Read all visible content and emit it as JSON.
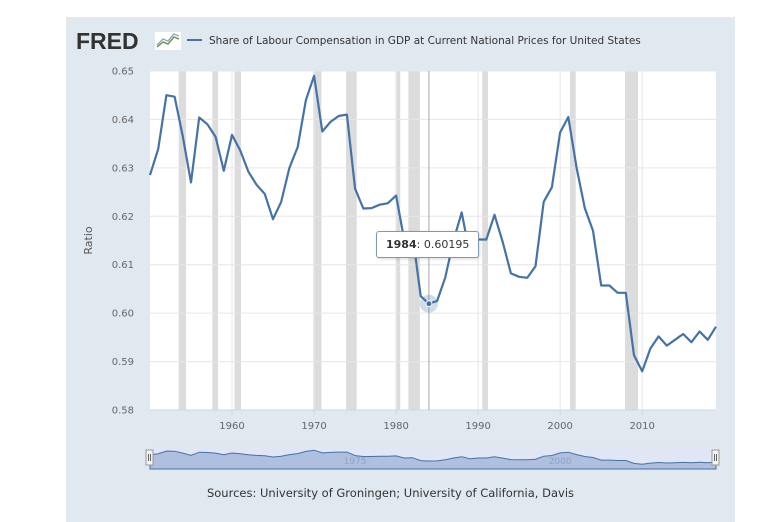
{
  "logo": {
    "text": "FRED"
  },
  "colors": {
    "panel": "#e1e9f0",
    "line": "#4572a7",
    "recession": "#dcdcdc",
    "navigator": "#aebfe0",
    "navigator_line": "#4572a7"
  },
  "chart_data": {
    "type": "line",
    "title": "Share of Labour Compensation in GDP at Current National Prices for United States",
    "legend_marker": "—",
    "xlabel": "",
    "ylabel": "Ratio",
    "xlim": [
      1950,
      2019
    ],
    "ylim": [
      0.58,
      0.65
    ],
    "x_ticks": [
      "1960",
      "1970",
      "1980",
      "1990",
      "2000",
      "2010"
    ],
    "x_tick_values": [
      1960,
      1970,
      1980,
      1990,
      2000,
      2010
    ],
    "y_ticks": [
      "0.58",
      "0.59",
      "0.60",
      "0.61",
      "0.62",
      "0.63",
      "0.64",
      "0.65"
    ],
    "y_tick_values": [
      0.58,
      0.59,
      0.6,
      0.61,
      0.62,
      0.63,
      0.64,
      0.65
    ],
    "grid": true,
    "recessions": [
      [
        1953.5,
        1954.4
      ],
      [
        1957.6,
        1958.3
      ],
      [
        1960.3,
        1961.1
      ],
      [
        1969.9,
        1970.9
      ],
      [
        1973.9,
        1975.2
      ],
      [
        1980.0,
        1980.5
      ],
      [
        1981.5,
        1982.9
      ],
      [
        1990.5,
        1991.2
      ],
      [
        2001.2,
        2001.9
      ],
      [
        2007.9,
        2009.5
      ]
    ],
    "series": [
      {
        "name": "Share of Labour Compensation in GDP at Current National Prices for United States",
        "x": [
          1950,
          1951,
          1952,
          1953,
          1954,
          1955,
          1956,
          1957,
          1958,
          1959,
          1960,
          1961,
          1962,
          1963,
          1964,
          1965,
          1966,
          1967,
          1968,
          1969,
          1970,
          1971,
          1972,
          1973,
          1974,
          1975,
          1976,
          1977,
          1978,
          1979,
          1980,
          1981,
          1982,
          1983,
          1984,
          1985,
          1986,
          1987,
          1988,
          1989,
          1990,
          1991,
          1992,
          1993,
          1994,
          1995,
          1996,
          1997,
          1998,
          1999,
          2000,
          2001,
          2002,
          2003,
          2004,
          2005,
          2006,
          2007,
          2008,
          2009,
          2010,
          2011,
          2012,
          2013,
          2014,
          2015,
          2016,
          2017,
          2018,
          2019
        ],
        "values": [
          0.6285,
          0.6339,
          0.645,
          0.6447,
          0.6365,
          0.627,
          0.6404,
          0.639,
          0.6364,
          0.6294,
          0.6368,
          0.6336,
          0.6292,
          0.6265,
          0.6246,
          0.6194,
          0.623,
          0.63,
          0.6343,
          0.644,
          0.649,
          0.6375,
          0.6395,
          0.6407,
          0.641,
          0.6257,
          0.6216,
          0.6217,
          0.6224,
          0.6227,
          0.6243,
          0.615,
          0.6163,
          0.6035,
          0.60195,
          0.6025,
          0.6074,
          0.615,
          0.6208,
          0.612,
          0.6152,
          0.6152,
          0.6203,
          0.6147,
          0.6082,
          0.6075,
          0.6073,
          0.6097,
          0.623,
          0.626,
          0.6373,
          0.6405,
          0.63,
          0.6217,
          0.617,
          0.6057,
          0.6057,
          0.6042,
          0.6042,
          0.5913,
          0.588,
          0.5927,
          0.5952,
          0.5933,
          0.5945,
          0.5957,
          0.594,
          0.5962,
          0.5945,
          0.5972
        ]
      }
    ],
    "tooltip": {
      "year": "1984",
      "separator": ": ",
      "value": "0.60195"
    },
    "navigator": {
      "labels": [
        "1975",
        "2000"
      ]
    },
    "sources": "Sources: University of Groningen; University of California, Davis"
  }
}
